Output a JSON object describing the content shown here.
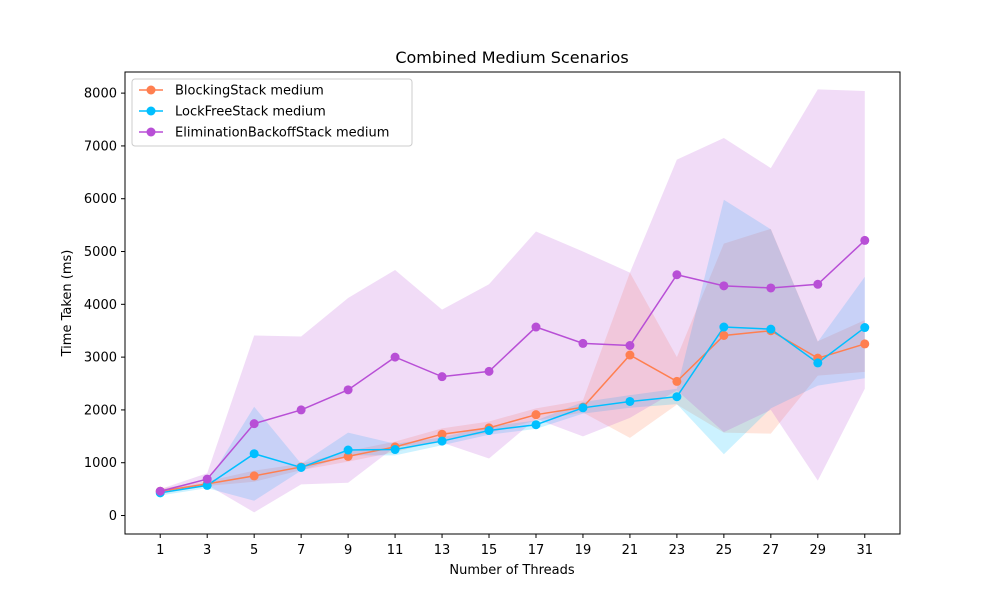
{
  "chart_data": {
    "type": "line",
    "title": "Combined Medium Scenarios",
    "xlabel": "Number of Threads",
    "ylabel": "Time Taken (ms)",
    "x": [
      1,
      3,
      5,
      7,
      9,
      11,
      13,
      15,
      17,
      19,
      21,
      23,
      25,
      27,
      29,
      31
    ],
    "xlim": [
      -0.5,
      32.5
    ],
    "ylim": [
      -350,
      8400
    ],
    "yticks": [
      0,
      1000,
      2000,
      3000,
      4000,
      5000,
      6000,
      7000,
      8000
    ],
    "grid": false,
    "legend_position": "top-left",
    "series": [
      {
        "name": "BlockingStack medium",
        "color": "#ff7f50",
        "values": [
          460,
          600,
          750,
          920,
          1120,
          1300,
          1540,
          1660,
          1910,
          2050,
          3040,
          2540,
          3410,
          3500,
          2980,
          3250
        ],
        "lower": [
          410,
          560,
          640,
          860,
          1020,
          1200,
          1430,
          1560,
          1800,
          1950,
          1470,
          2100,
          1570,
          1550,
          2650,
          2720
        ],
        "upper": [
          510,
          650,
          850,
          980,
          1220,
          1400,
          1650,
          1780,
          2030,
          2180,
          4600,
          3000,
          5150,
          5430,
          3300,
          3700
        ]
      },
      {
        "name": "LockFreeStack medium",
        "color": "#00bfff",
        "values": [
          430,
          570,
          1170,
          910,
          1240,
          1250,
          1410,
          1610,
          1720,
          2040,
          2160,
          2250,
          3570,
          3530,
          2890,
          3560
        ],
        "lower": [
          380,
          520,
          280,
          850,
          1140,
          1140,
          1330,
          1530,
          1640,
          1930,
          2040,
          2110,
          1160,
          2030,
          2460,
          2600
        ],
        "upper": [
          480,
          620,
          2060,
          980,
          1570,
          1360,
          1480,
          1690,
          1800,
          2150,
          2280,
          2400,
          5980,
          5420,
          3290,
          4520
        ]
      },
      {
        "name": "EliminationBackoffStack medium",
        "color": "#b84fd6",
        "values": [
          460,
          690,
          1740,
          2000,
          2380,
          3000,
          2630,
          2730,
          3570,
          3260,
          3220,
          4560,
          4350,
          4310,
          4380,
          5210
        ],
        "lower": [
          420,
          580,
          60,
          590,
          620,
          1300,
          1380,
          1080,
          1830,
          1500,
          1850,
          2370,
          1580,
          2000,
          660,
          2400
        ],
        "upper": [
          500,
          800,
          3410,
          3390,
          4120,
          4650,
          3900,
          4380,
          5380,
          5000,
          4600,
          6740,
          7150,
          6580,
          8070,
          8040
        ]
      }
    ]
  }
}
